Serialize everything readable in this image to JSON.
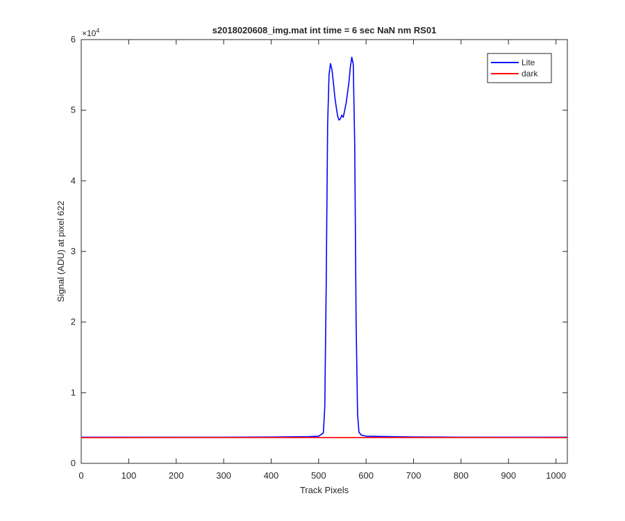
{
  "chart_data": {
    "type": "line",
    "title": "s2018020608_img.mat int time = 6 sec  NaN nm RS01",
    "xlabel": "Track Pixels",
    "ylabel": "Signal (ADU) at pixel 622",
    "xlim": [
      0,
      1024
    ],
    "ylim": [
      0,
      60000
    ],
    "x_ticks": [
      0,
      100,
      200,
      300,
      400,
      500,
      600,
      700,
      800,
      900,
      1000
    ],
    "y_ticks": [
      0,
      1,
      2,
      3,
      4,
      5,
      6
    ],
    "y_multiplier_base": "×10",
    "y_multiplier_exp": "4",
    "grid": false,
    "legend": {
      "placement": "top-right"
    },
    "series": [
      {
        "name": "Lite",
        "color": "#0000ff",
        "x": [
          0,
          100,
          200,
          300,
          400,
          480,
          500,
          510,
          513,
          516,
          519,
          522,
          525,
          528,
          531,
          534,
          537,
          540,
          543,
          546,
          549,
          552,
          555,
          558,
          561,
          564,
          567,
          570,
          573,
          576,
          579,
          582,
          585,
          590,
          600,
          650,
          700,
          800,
          900,
          1024
        ],
        "values": [
          3700,
          3700,
          3700,
          3700,
          3720,
          3780,
          3850,
          4300,
          8000,
          25000,
          48000,
          55000,
          56600,
          55800,
          54000,
          52000,
          50500,
          49200,
          48600,
          48800,
          49300,
          49000,
          50000,
          51000,
          52500,
          54000,
          56200,
          57500,
          56500,
          45000,
          20000,
          7000,
          4400,
          4000,
          3850,
          3780,
          3740,
          3700,
          3700,
          3700
        ]
      },
      {
        "name": "dark",
        "color": "#ff0000",
        "x": [
          0,
          256,
          512,
          768,
          1024
        ],
        "values": [
          3650,
          3660,
          3660,
          3660,
          3650
        ]
      }
    ]
  }
}
